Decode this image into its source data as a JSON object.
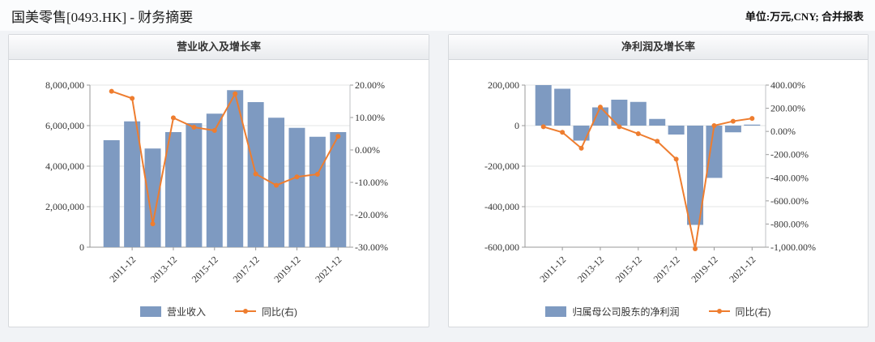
{
  "page": {
    "title": "国美零售[0493.HK] - 财务摘要",
    "unit_note": "单位:万元,CNY; 合并报表"
  },
  "chart_data": [
    {
      "type": "bar",
      "title": "营业收入及增长率",
      "categories": [
        "2010-12",
        "2011-12",
        "2012-12",
        "2013-12",
        "2014-12",
        "2015-12",
        "2016-12",
        "2017-12",
        "2018-12",
        "2019-12",
        "2020-12",
        "2021-12"
      ],
      "x_tick_labels": [
        "2011-12",
        "2013-12",
        "2015-12",
        "2017-12",
        "2019-12",
        "2021-12"
      ],
      "series": [
        {
          "name": "营业收入",
          "type": "bar",
          "axis": "left",
          "values": [
            5280000,
            6210000,
            4870000,
            5680000,
            6120000,
            6590000,
            7750000,
            7160000,
            6390000,
            5890000,
            5450000,
            5680000
          ]
        },
        {
          "name": "同比(右)",
          "type": "line",
          "axis": "right",
          "values": [
            18.1,
            15.9,
            -22.8,
            9.9,
            7.0,
            6.0,
            17.3,
            -7.4,
            -10.9,
            -8.3,
            -7.5,
            4.2
          ]
        }
      ],
      "left_axis": {
        "min": 0,
        "max": 8000000,
        "tick_labels": [
          "8,000,000",
          "6,000,000",
          "4,000,000",
          "2,000,000",
          "0"
        ]
      },
      "right_axis": {
        "min": -30,
        "max": 20,
        "tick_labels": [
          "20.00%",
          "10.00%",
          "0.00%",
          "-10.00%",
          "-20.00%",
          "-30.00%"
        ]
      },
      "grid": true,
      "legend_position": "bottom",
      "colors": {
        "bar": "#7e9ac1",
        "line": "#ee7d2f"
      }
    },
    {
      "type": "bar",
      "title": "净利润及增长率",
      "categories": [
        "2010-12",
        "2011-12",
        "2012-12",
        "2013-12",
        "2014-12",
        "2015-12",
        "2016-12",
        "2017-12",
        "2018-12",
        "2019-12",
        "2020-12",
        "2021-12"
      ],
      "x_tick_labels": [
        "2011-12",
        "2013-12",
        "2015-12",
        "2017-12",
        "2019-12",
        "2021-12"
      ],
      "series": [
        {
          "name": "归属母公司股东的净利润",
          "type": "bar",
          "axis": "left",
          "values": [
            200000,
            182000,
            -74000,
            90000,
            128000,
            117000,
            33000,
            -44000,
            -490000,
            -258000,
            -33000,
            5000
          ]
        },
        {
          "name": "同比(右)",
          "type": "line",
          "axis": "right",
          "values": [
            40,
            -8,
            -145,
            210,
            40,
            -20,
            -85,
            -240,
            -1014,
            50,
            88,
            112
          ]
        }
      ],
      "left_axis": {
        "min": -600000,
        "max": 200000,
        "tick_labels": [
          "200,000",
          "0",
          "-200,000",
          "-400,000",
          "-600,000"
        ]
      },
      "right_axis": {
        "min": -1000,
        "max": 400,
        "tick_labels": [
          "400.00%",
          "200.00%",
          "0.00%",
          "-200.00%",
          "-400.00%",
          "-600.00%",
          "-800.00%",
          "-1,000.00%"
        ]
      },
      "grid": true,
      "legend_position": "bottom",
      "colors": {
        "bar": "#7e9ac1",
        "line": "#ee7d2f"
      }
    }
  ]
}
